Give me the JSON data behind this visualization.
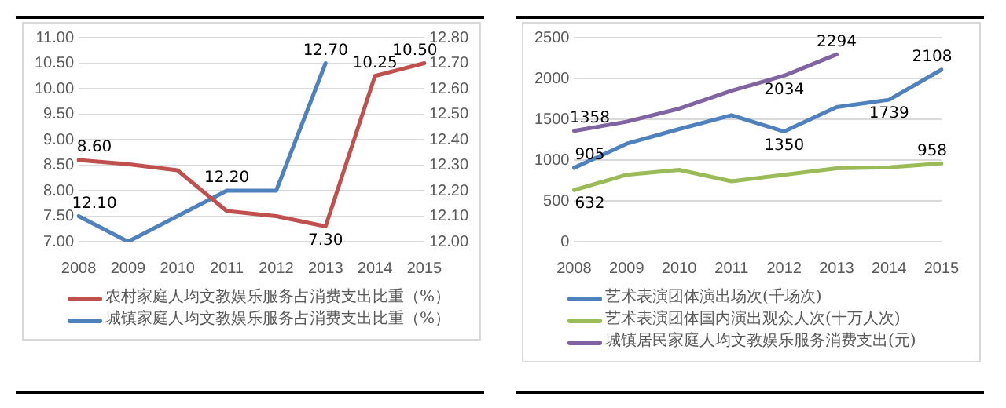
{
  "chart_data": [
    {
      "type": "line",
      "categories": [
        "2008",
        "2009",
        "2010",
        "2011",
        "2012",
        "2013",
        "2014",
        "2015"
      ],
      "series": [
        {
          "name": "农村家庭人均文教娱乐服务占消费支出比重（%）",
          "color": "#c0504d",
          "values": [
            8.6,
            8.52,
            8.4,
            7.6,
            7.5,
            7.3,
            10.25,
            10.5
          ],
          "value_labels": [
            "8.60",
            null,
            null,
            null,
            null,
            "7.30",
            "10.25",
            "10.50"
          ]
        },
        {
          "name": "城镇家庭人均文教娱乐服务占消费支出比重（%）",
          "color": "#4f81bd",
          "axis": "y2",
          "values": [
            12.1,
            12.0,
            12.1,
            12.2,
            12.2,
            12.7,
            null,
            null
          ],
          "value_labels": [
            "12.10",
            null,
            null,
            "12.20",
            null,
            "12.70",
            null,
            null
          ]
        }
      ],
      "ylim": [
        7,
        11
      ],
      "yticks": [
        {
          "value": 7,
          "label": "7.00"
        },
        {
          "value": 7.5,
          "label": "7.50"
        },
        {
          "value": 8,
          "label": "8.00"
        },
        {
          "value": 8.5,
          "label": "8.50"
        },
        {
          "value": 9,
          "label": "9.00"
        },
        {
          "value": 9.5,
          "label": "9.50"
        },
        {
          "value": 10,
          "label": "10.00"
        },
        {
          "value": 10.5,
          "label": "10.50"
        },
        {
          "value": 11,
          "label": "11.00"
        }
      ],
      "y2lim": [
        12,
        12.8
      ],
      "y2ticks": [
        {
          "value": 12,
          "label": "12.00"
        },
        {
          "value": 12.1,
          "label": "12.10"
        },
        {
          "value": 12.2,
          "label": "12.20"
        },
        {
          "value": 12.3,
          "label": "12.30"
        },
        {
          "value": 12.4,
          "label": "12.40"
        },
        {
          "value": 12.5,
          "label": "12.50"
        },
        {
          "value": 12.6,
          "label": "12.60"
        },
        {
          "value": 12.7,
          "label": "12.70"
        },
        {
          "value": 12.8,
          "label": "12.80"
        }
      ],
      "grid": "y",
      "legend": "bottom",
      "marker": "none",
      "line_style": "solid"
    },
    {
      "type": "line",
      "categories": [
        "2008",
        "2009",
        "2010",
        "2011",
        "2012",
        "2013",
        "2014",
        "2015"
      ],
      "series": [
        {
          "name": "艺术表演团体演出场次(千场次)",
          "color": "#4f81bd",
          "values": [
            905,
            1200,
            1380,
            1550,
            1350,
            1650,
            1739,
            2108
          ],
          "value_labels": [
            "905",
            null,
            null,
            null,
            "1350",
            null,
            "1739",
            "2108"
          ]
        },
        {
          "name": "艺术表演团体国内演出观众人次(十万人次)",
          "color": "#9bbb59",
          "values": [
            632,
            820,
            880,
            740,
            820,
            900,
            910,
            958
          ],
          "value_labels": [
            "632",
            null,
            null,
            null,
            null,
            null,
            null,
            "958"
          ]
        },
        {
          "name": "城镇居民家庭人均文教娱乐服务消费支出(元)",
          "color": "#8064a2",
          "values": [
            1358,
            1470,
            1630,
            1850,
            2034,
            2294,
            null,
            null
          ],
          "value_labels": [
            "1358",
            null,
            null,
            null,
            "2034",
            "2294",
            null,
            null
          ]
        }
      ],
      "ylim": [
        0,
        2500
      ],
      "yticks": [
        0,
        500,
        1000,
        1500,
        2000,
        2500
      ],
      "grid": "y",
      "legend": "bottom",
      "marker": "none",
      "line_style": "solid"
    }
  ]
}
